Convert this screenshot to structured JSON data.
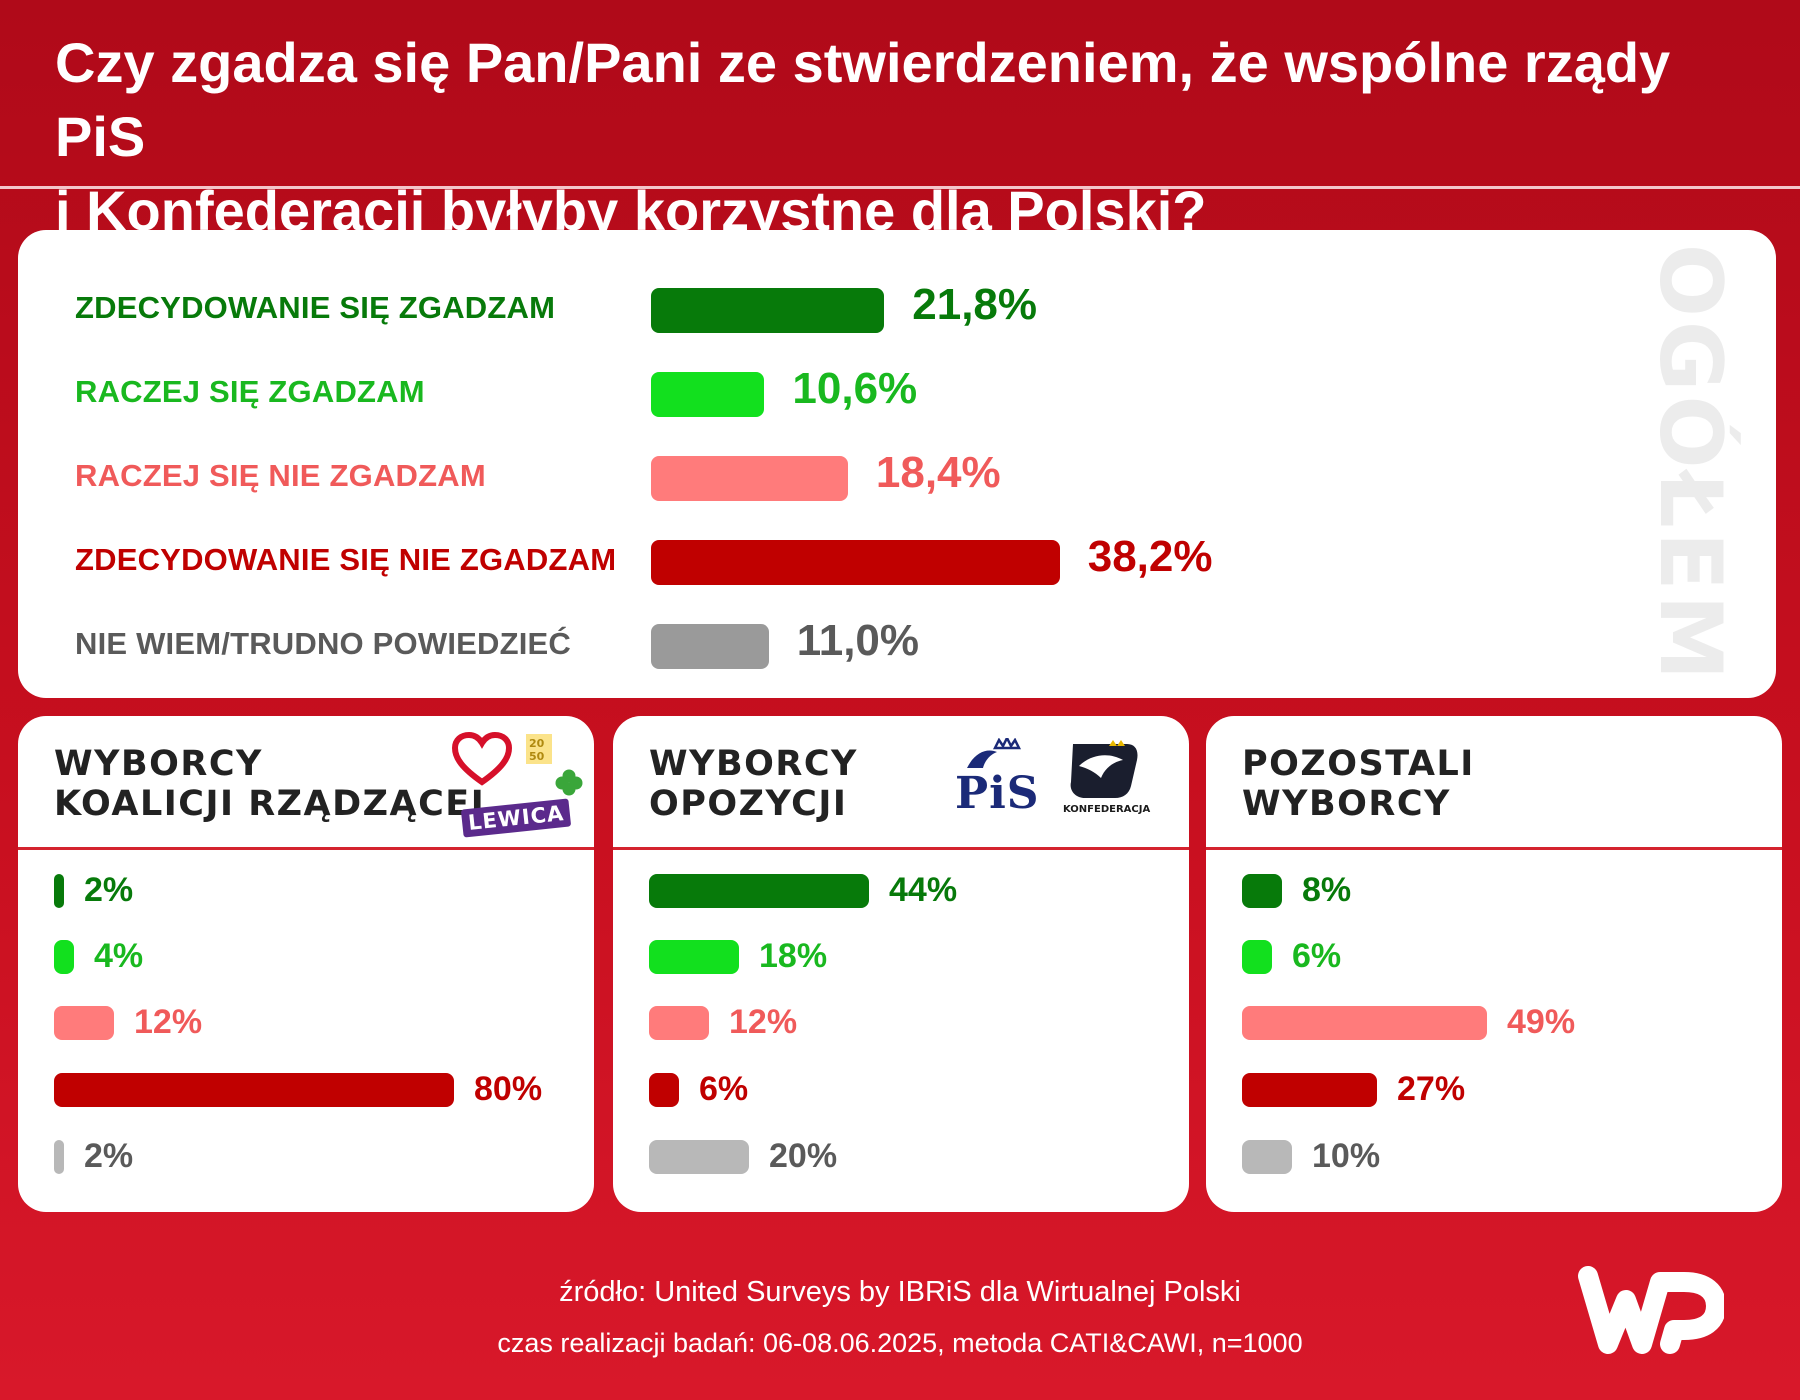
{
  "title": {
    "line1": "Czy zgadza się Pan/Pani ze stwierdzeniem, że wspólne rządy PiS",
    "line2": "i Konfederacji byłyby korzystne dla Polski?"
  },
  "colors": {
    "strongly_agree": "#077a0a",
    "agree": "#12e01e",
    "disagree": "#ff7b7b",
    "strongly_disagree": "#c00000",
    "dont_know": "#9a9a9a",
    "dont_know_small": "#b8b8b8",
    "dont_know_text": "#5a5a5a",
    "disagree_text": "#f05a5a",
    "agree_text": "#19b81f"
  },
  "chart_data": [
    {
      "type": "bar",
      "orientation": "horizontal",
      "title": "OGÓŁEM",
      "unit": "%",
      "categories": [
        "ZDECYDOWANIE SIĘ ZGADZAM",
        "RACZEJ SIĘ ZGADZAM",
        "RACZEJ SIĘ NIE ZGADZAM",
        "ZDECYDOWANIE SIĘ NIE ZGADZAM",
        "NIE WIEM/TRUDNO POWIEDZIEĆ"
      ],
      "values": [
        21.8,
        10.6,
        18.4,
        38.2,
        11.0
      ],
      "labels": [
        "21,8%",
        "10,6%",
        "18,4%",
        "38,2%",
        "11,0%"
      ],
      "grid": false,
      "legend": "none"
    },
    {
      "type": "bar",
      "orientation": "horizontal",
      "title_lines": [
        "WYBORCY",
        "KOALICJI RZĄDZĄCEJ"
      ],
      "unit": "%",
      "values": [
        2,
        4,
        12,
        80,
        2
      ],
      "labels": [
        "2%",
        "4%",
        "12%",
        "80%",
        "2%"
      ]
    },
    {
      "type": "bar",
      "orientation": "horizontal",
      "title_lines": [
        "WYBORCY",
        "OPOZYCJI"
      ],
      "unit": "%",
      "values": [
        44,
        18,
        12,
        6,
        20
      ],
      "labels": [
        "44%",
        "18%",
        "12%",
        "6%",
        "20%"
      ]
    },
    {
      "type": "bar",
      "orientation": "horizontal",
      "title_lines": [
        "POZOSTALI",
        "WYBORCY"
      ],
      "unit": "%",
      "values": [
        8,
        6,
        49,
        27,
        10
      ],
      "labels": [
        "8%",
        "6%",
        "49%",
        "27%",
        "10%"
      ]
    }
  ],
  "logos": {
    "lewica": "LEWICA",
    "pis": "PiS",
    "konfederacja": "KONFEDERACJA"
  },
  "icons": {
    "coalition_heart": "heart-icon",
    "coalition_clover": "clover-icon",
    "pis_eagle": "eagle-crown-icon",
    "konfederacja_eagle": "eagle-icon",
    "wp_brand": "wp-logo-icon"
  },
  "footer": {
    "source": "źródło: United Surveys by IBRiS dla Wirtualnej Polski",
    "meta": "czas realizacji badań: 06-08.06.2025, metoda CATI&CAWI, n=1000"
  }
}
